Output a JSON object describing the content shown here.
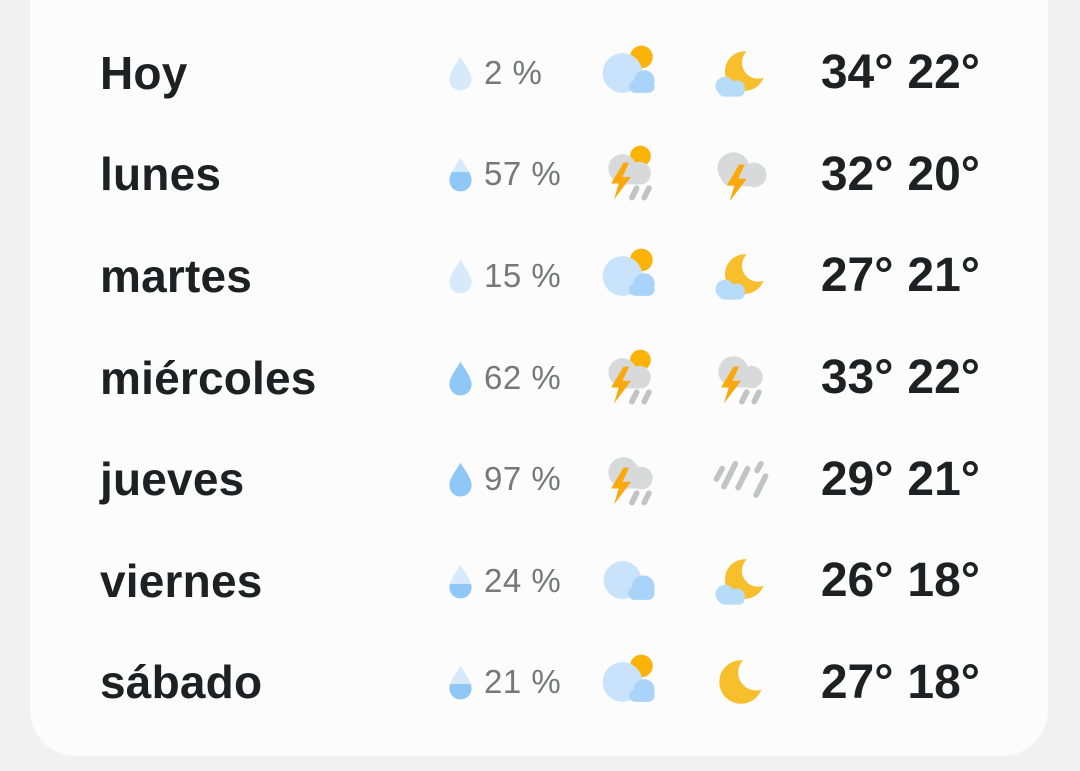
{
  "page": {
    "background": "#F1F1F2",
    "card_background": "#FCFCFD"
  },
  "colors": {
    "text_primary": "#1F2023",
    "text_secondary": "#77787B",
    "sun": "#FBB308",
    "moon": "#F8BF2D",
    "bolt": "#FAA90C",
    "cloud_light": "#C8E3FB",
    "cloud_mid": "#A9D3F8",
    "cloud_night": "#B7DCFA",
    "cloud_gray": "#D8D9DB",
    "rain_gray": "#C2C3C6",
    "drop_pale": "#D7EAFC",
    "drop_blue": "#8FC8F6"
  },
  "forecast": {
    "rows": [
      {
        "day": "Hoy",
        "precip": "2 %",
        "droplet_fill": 0.0,
        "day_icon": "cloud-sun",
        "night_icon": "cloud-moon",
        "high": "34°",
        "low": "22°"
      },
      {
        "day": "lunes",
        "precip": "57 %",
        "droplet_fill": 0.58,
        "day_icon": "storm-sun-rain",
        "night_icon": "storm",
        "high": "32°",
        "low": "20°"
      },
      {
        "day": "martes",
        "precip": "15 %",
        "droplet_fill": 0.0,
        "day_icon": "cloud-sun",
        "night_icon": "cloud-moon",
        "high": "27°",
        "low": "21°"
      },
      {
        "day": "miércoles",
        "precip": "62 %",
        "droplet_fill": 1.0,
        "day_icon": "storm-sun-rain",
        "night_icon": "storm-rain",
        "high": "33°",
        "low": "22°"
      },
      {
        "day": "jueves",
        "precip": "97 %",
        "droplet_fill": 1.0,
        "day_icon": "storm-rain",
        "night_icon": "rain",
        "high": "29°",
        "low": "21°"
      },
      {
        "day": "viernes",
        "precip": "24 %",
        "droplet_fill": 0.42,
        "day_icon": "cloud",
        "night_icon": "cloud-moon",
        "high": "26°",
        "low": "18°"
      },
      {
        "day": "sábado",
        "precip": "21 %",
        "droplet_fill": 0.45,
        "day_icon": "cloud-sun",
        "night_icon": "moon",
        "high": "27°",
        "low": "18°"
      }
    ]
  }
}
